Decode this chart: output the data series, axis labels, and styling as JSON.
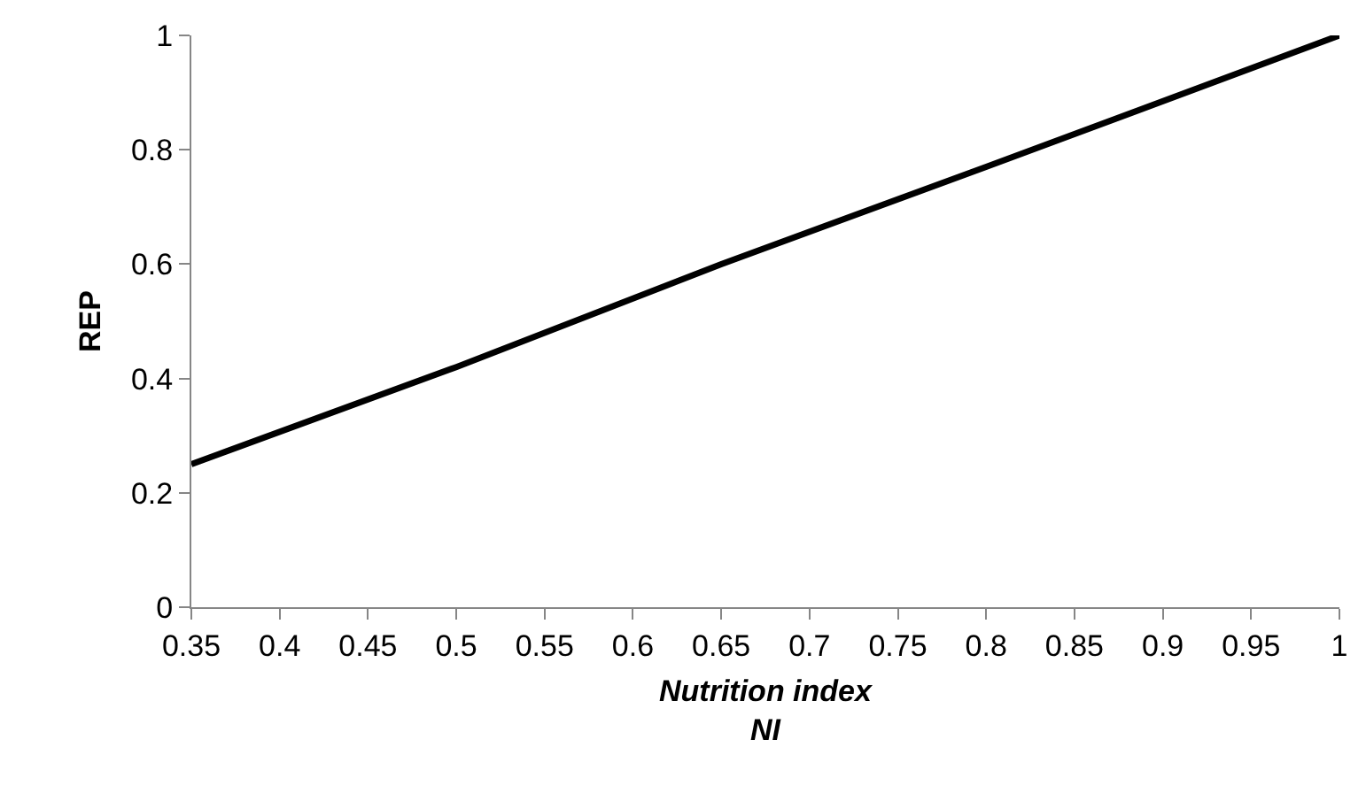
{
  "chart_data": {
    "type": "line",
    "xlabel": "Nutrition index\nNI",
    "ylabel": "REP",
    "x": [
      0.35,
      0.5,
      0.65,
      0.8,
      1
    ],
    "series": [
      {
        "color": "#000000",
        "values": [
          0.25,
          0.42,
          0.6,
          0.77,
          1
        ]
      }
    ],
    "xlim": [
      0.35,
      1
    ],
    "xticks": [
      0.35,
      0.4,
      0.45,
      0.5,
      0.55,
      0.6,
      0.65,
      0.7,
      0.75,
      0.8,
      0.85,
      0.9,
      0.95,
      1
    ],
    "ylim": [
      0,
      1
    ],
    "yticks": [
      0,
      0.2,
      0.4,
      0.6,
      0.8,
      1
    ],
    "legend": false,
    "marker": "none",
    "line_style": "solid"
  }
}
